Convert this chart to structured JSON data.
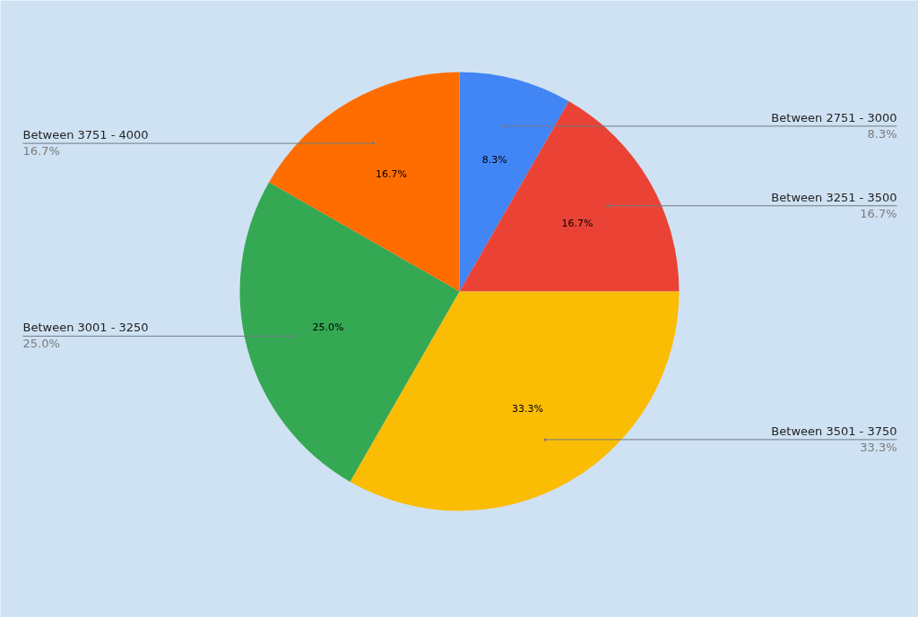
{
  "chart_data": {
    "type": "pie",
    "categories": [
      "Between 2751 - 3000",
      "Between 3251 - 3500",
      "Between 3501 - 3750",
      "Between 3001 - 3250",
      "Between 3751 - 4000"
    ],
    "values": [
      8.3,
      16.7,
      33.3,
      25.0,
      16.7
    ],
    "colors": [
      "#4285f4",
      "#ea4335",
      "#fbbc04",
      "#34a853",
      "#ff6d01"
    ],
    "value_labels": [
      "8.3%",
      "16.7%",
      "33.3%",
      "25.0%",
      "16.7%"
    ]
  }
}
